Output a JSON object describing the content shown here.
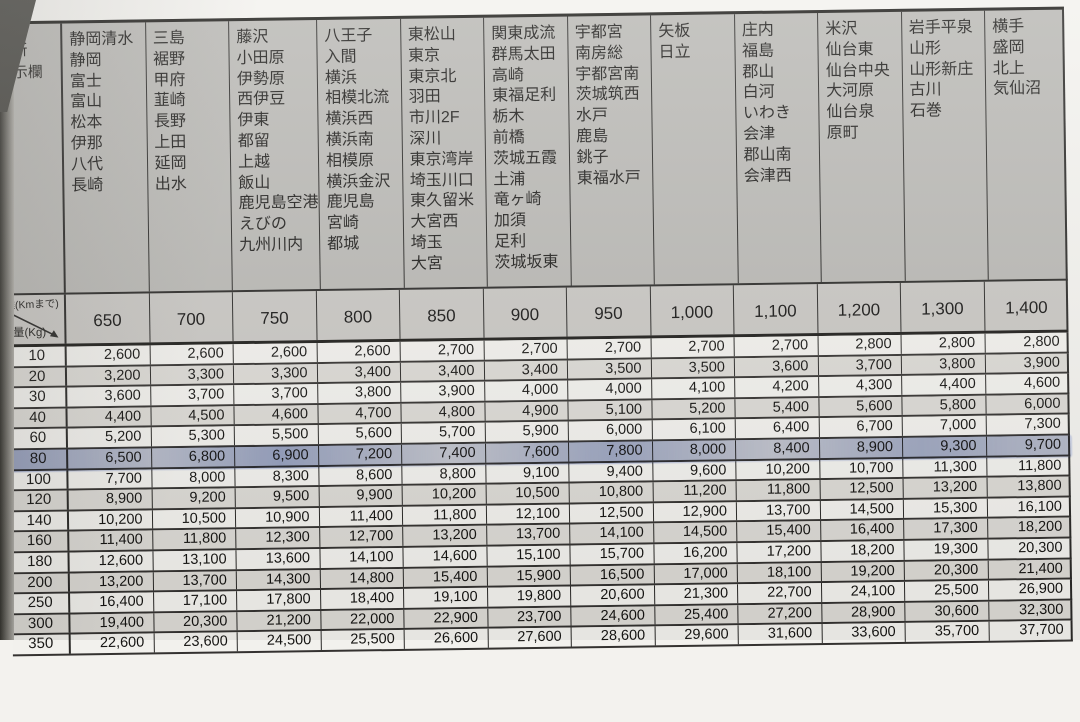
{
  "colors": {
    "header_bg": "#b9b8b4",
    "distance_row_bg": "#c9c7c3",
    "row_light": "#f2f1ed",
    "row_shaded": "#dcdad5",
    "grid_line": "#2a2927",
    "highlight_blue": "#7a8ecd",
    "page_edge_dark": "#35342f",
    "paper": "#f3f2ee"
  },
  "office_header": {
    "label": "所\n示欄"
  },
  "corner": {
    "distance_unit_label": "距離(Kmまで)",
    "weight_unit_label": "重量(Kg)"
  },
  "columns": [
    {
      "distance": "650",
      "offices": "静岡清水\n静岡\n富士\n富山\n松本\n伊那\n八代\n長崎"
    },
    {
      "distance": "700",
      "offices": "三島\n裾野\n甲府\n韮崎\n長野\n上田\n延岡\n出水"
    },
    {
      "distance": "750",
      "offices": "藤沢\n小田原\n伊勢原\n西伊豆\n伊東\n都留\n上越\n飯山\n鹿児島空港\nえびの\n九州川内"
    },
    {
      "distance": "800",
      "offices": "八王子\n入間\n横浜\n相模北流\n横浜西\n横浜南\n相模原\n横浜金沢\n鹿児島\n宮崎\n都城"
    },
    {
      "distance": "850",
      "offices": "東松山\n東京\n東京北\n羽田\n市川2F\n深川\n東京湾岸\n埼玉川口\n東久留米\n大宮西\n埼玉\n大宮"
    },
    {
      "distance": "900",
      "offices": "関東成流\n群馬太田\n高崎\n東福足利\n栃木\n前橋\n茨城五霞\n土浦\n竜ヶ崎\n加須\n足利\n茨城坂東"
    },
    {
      "distance": "950",
      "offices": "宇都宮\n南房総\n宇都宮南\n茨城筑西\n水戸\n鹿島\n銚子\n東福水戸"
    },
    {
      "distance": "1,000",
      "offices": "矢板\n日立"
    },
    {
      "distance": "1,100",
      "offices": "庄内\n福島\n郡山\n白河\nいわき\n会津\n郡山南\n会津西"
    },
    {
      "distance": "1,200",
      "offices": "米沢\n仙台東\n仙台中央\n大河原\n仙台泉\n原町"
    },
    {
      "distance": "1,300",
      "offices": "岩手平泉\n山形\n山形新庄\n古川\n石巻"
    },
    {
      "distance": "1,400",
      "offices": "横手\n盛岡\n北上\n気仙沼"
    }
  ],
  "rows": [
    {
      "weight": "10",
      "rates": [
        "2,600",
        "2,600",
        "2,600",
        "2,600",
        "2,700",
        "2,700",
        "2,700",
        "2,700",
        "2,700",
        "2,800",
        "2,800",
        "2,800"
      ]
    },
    {
      "weight": "20",
      "rates": [
        "3,200",
        "3,300",
        "3,300",
        "3,400",
        "3,400",
        "3,400",
        "3,500",
        "3,500",
        "3,600",
        "3,700",
        "3,800",
        "3,900"
      ]
    },
    {
      "weight": "30",
      "rates": [
        "3,600",
        "3,700",
        "3,700",
        "3,800",
        "3,900",
        "4,000",
        "4,000",
        "4,100",
        "4,200",
        "4,300",
        "4,400",
        "4,600"
      ]
    },
    {
      "weight": "40",
      "rates": [
        "4,400",
        "4,500",
        "4,600",
        "4,700",
        "4,800",
        "4,900",
        "5,100",
        "5,200",
        "5,400",
        "5,600",
        "5,800",
        "6,000"
      ]
    },
    {
      "weight": "60",
      "rates": [
        "5,200",
        "5,300",
        "5,500",
        "5,600",
        "5,700",
        "5,900",
        "6,000",
        "6,100",
        "6,400",
        "6,700",
        "7,000",
        "7,300"
      ]
    },
    {
      "weight": "80",
      "rates": [
        "6,500",
        "6,800",
        "6,900",
        "7,200",
        "7,400",
        "7,600",
        "7,800",
        "8,000",
        "8,400",
        "8,900",
        "9,300",
        "9,700"
      ]
    },
    {
      "weight": "100",
      "rates": [
        "7,700",
        "8,000",
        "8,300",
        "8,600",
        "8,800",
        "9,100",
        "9,400",
        "9,600",
        "10,200",
        "10,700",
        "11,300",
        "11,800"
      ]
    },
    {
      "weight": "120",
      "rates": [
        "8,900",
        "9,200",
        "9,500",
        "9,900",
        "10,200",
        "10,500",
        "10,800",
        "11,200",
        "11,800",
        "12,500",
        "13,200",
        "13,800"
      ]
    },
    {
      "weight": "140",
      "rates": [
        "10,200",
        "10,500",
        "10,900",
        "11,400",
        "11,800",
        "12,100",
        "12,500",
        "12,900",
        "13,700",
        "14,500",
        "15,300",
        "16,100"
      ]
    },
    {
      "weight": "160",
      "rates": [
        "11,400",
        "11,800",
        "12,300",
        "12,700",
        "13,200",
        "13,700",
        "14,100",
        "14,500",
        "15,400",
        "16,400",
        "17,300",
        "18,200"
      ]
    },
    {
      "weight": "180",
      "rates": [
        "12,600",
        "13,100",
        "13,600",
        "14,100",
        "14,600",
        "15,100",
        "15,700",
        "16,200",
        "17,200",
        "18,200",
        "19,300",
        "20,300"
      ]
    },
    {
      "weight": "200",
      "rates": [
        "13,200",
        "13,700",
        "14,300",
        "14,800",
        "15,400",
        "15,900",
        "16,500",
        "17,000",
        "18,100",
        "19,200",
        "20,300",
        "21,400"
      ]
    },
    {
      "weight": "250",
      "rates": [
        "16,400",
        "17,100",
        "17,800",
        "18,400",
        "19,100",
        "19,800",
        "20,600",
        "21,300",
        "22,700",
        "24,100",
        "25,500",
        "26,900"
      ]
    },
    {
      "weight": "300",
      "rates": [
        "19,400",
        "20,300",
        "21,200",
        "22,000",
        "22,900",
        "23,700",
        "24,600",
        "25,400",
        "27,200",
        "28,900",
        "30,600",
        "32,300"
      ]
    }
  ],
  "partial_row": {
    "weight": "350",
    "rates": [
      "22,600",
      "23,600",
      "24,500",
      "25,500",
      "26,600",
      "27,600",
      "28,600",
      "29,600",
      "31,600",
      "33,600",
      "35,700",
      "37,700"
    ]
  },
  "highlight": {
    "row_weight": "80"
  }
}
